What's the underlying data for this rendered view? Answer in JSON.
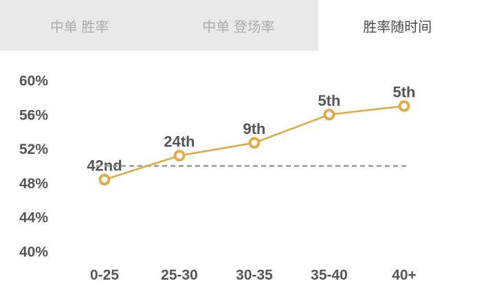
{
  "tabs": [
    {
      "label": "中单 胜率",
      "active": false
    },
    {
      "label": "中单 登场率",
      "active": false
    },
    {
      "label": "胜率随时间",
      "active": true
    }
  ],
  "chart_data": {
    "type": "line",
    "title": "胜率随时间",
    "categories": [
      "0-25",
      "25-30",
      "30-35",
      "35-40",
      "40+"
    ],
    "series": [
      {
        "name": "胜率",
        "values": [
          48.4,
          51.2,
          52.7,
          56.0,
          57.0
        ],
        "point_labels": [
          "42nd",
          "24th",
          "9th",
          "5th",
          "5th"
        ]
      }
    ],
    "yticks": [
      60,
      56,
      52,
      48,
      44,
      40
    ],
    "ytick_suffix": "%",
    "ylim": [
      40,
      62
    ],
    "reference_line": 50,
    "grid": false,
    "legend": "none",
    "colors": {
      "line": "#ddab45",
      "marker_ring": "#e5a93d",
      "marker_fill": "#ffffff",
      "reference": "#999999",
      "label": "#55565a"
    }
  }
}
